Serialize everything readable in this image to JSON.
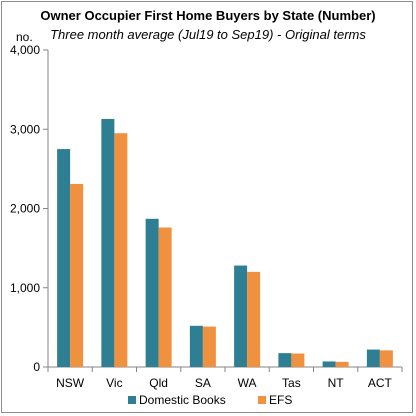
{
  "chart_data": {
    "type": "bar",
    "title": "Owner Occupier First Home Buyers by State (Number)",
    "subtitle": "Three month average (Jul19 to Sep19) - Original terms",
    "ylabel": "no.",
    "xlabel": "",
    "categories": [
      "NSW",
      "Vic",
      "Qld",
      "SA",
      "WA",
      "Tas",
      "NT",
      "ACT"
    ],
    "series": [
      {
        "name": "Domestic Books",
        "color": "#2e7f93",
        "values": [
          2750,
          3130,
          1870,
          520,
          1280,
          175,
          70,
          220
        ]
      },
      {
        "name": "EFS",
        "color": "#f0913f",
        "values": [
          2310,
          2950,
          1760,
          510,
          1200,
          170,
          65,
          210
        ]
      }
    ],
    "ylim": [
      0,
      4000
    ],
    "yticks": [
      0,
      1000,
      2000,
      3000,
      4000
    ],
    "ytick_labels": [
      "0",
      "1,000",
      "2,000",
      "3,000",
      "4,000"
    ],
    "grid": false,
    "legend": "bottom"
  }
}
